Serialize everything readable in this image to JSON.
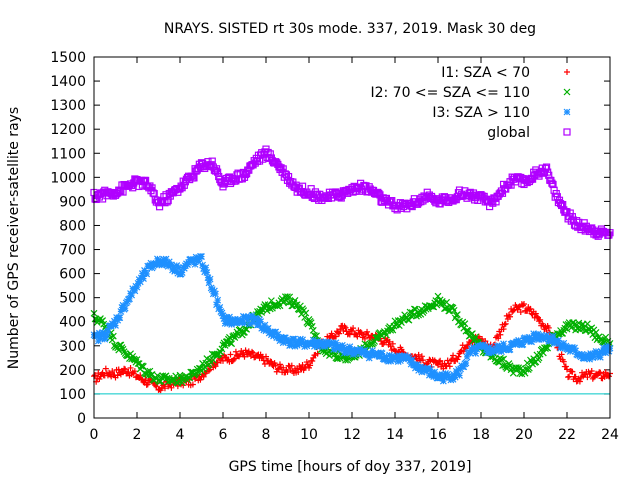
{
  "chart_data": {
    "type": "scatter",
    "title": "NRAYS. SISTED rt 30s mode. 337, 2019. Mask 30 deg",
    "xlabel": "GPS time [hours of doy 337, 2019]",
    "ylabel": "Number of GPS receiver-satellite rays",
    "xlim": [
      0,
      24
    ],
    "ylim": [
      0,
      1500
    ],
    "x_ticks": [
      "0",
      "2",
      "4",
      "6",
      "8",
      "10",
      "12",
      "14",
      "16",
      "18",
      "20",
      "22",
      "24"
    ],
    "y_ticks": [
      "0",
      "100",
      "200",
      "300",
      "400",
      "500",
      "600",
      "700",
      "800",
      "900",
      "1000",
      "1100",
      "1200",
      "1300",
      "1400",
      "1500"
    ],
    "reference_line": {
      "y": 100,
      "color": "#00c8c8"
    },
    "legend_position": "top-right",
    "series": [
      {
        "name": "I1: SZA < 70",
        "color": "#ff0000",
        "marker": "plus",
        "x": [
          0,
          0.5,
          1,
          1.5,
          2,
          2.5,
          3,
          3.5,
          4,
          4.5,
          5,
          5.5,
          6,
          6.5,
          7,
          7.5,
          8,
          8.5,
          9,
          9.5,
          10,
          10.5,
          11,
          11.5,
          12,
          12.5,
          13,
          13.5,
          14,
          14.5,
          15,
          15.5,
          16,
          16.5,
          17,
          17.5,
          18,
          18.5,
          19,
          19.5,
          20,
          20.5,
          21,
          21.5,
          22,
          22.5,
          23,
          23.5,
          24
        ],
        "values": [
          160,
          190,
          185,
          200,
          175,
          150,
          125,
          140,
          150,
          150,
          180,
          225,
          245,
          255,
          270,
          255,
          240,
          210,
          200,
          200,
          225,
          300,
          330,
          370,
          360,
          345,
          340,
          320,
          290,
          265,
          250,
          230,
          220,
          225,
          270,
          330,
          325,
          290,
          380,
          450,
          460,
          430,
          380,
          310,
          185,
          165,
          180,
          175,
          185
        ]
      },
      {
        "name": "I2: 70 <= SZA <= 110",
        "color": "#00b000",
        "marker": "cross",
        "x": [
          0,
          0.5,
          1,
          1.5,
          2,
          2.5,
          3,
          3.5,
          4,
          4.5,
          5,
          5.5,
          6,
          6.5,
          7,
          7.5,
          8,
          8.5,
          9,
          9.5,
          10,
          10.5,
          11,
          11.5,
          12,
          12.5,
          13,
          13.5,
          14,
          14.5,
          15,
          15.5,
          16,
          16.5,
          17,
          17.5,
          18,
          18.5,
          19,
          19.5,
          20,
          20.5,
          21,
          21.5,
          22,
          22.5,
          23,
          23.5,
          24
        ],
        "values": [
          420,
          390,
          310,
          270,
          230,
          190,
          160,
          160,
          160,
          175,
          210,
          250,
          300,
          330,
          370,
          420,
          460,
          480,
          490,
          470,
          400,
          300,
          270,
          260,
          250,
          285,
          320,
          350,
          390,
          415,
          440,
          460,
          490,
          460,
          410,
          350,
          290,
          260,
          230,
          200,
          200,
          240,
          290,
          350,
          380,
          380,
          375,
          330,
          310
        ]
      },
      {
        "name": "I3: SZA > 110",
        "color": "#1e90ff",
        "marker": "star",
        "x": [
          0,
          0.5,
          1,
          1.5,
          2,
          2.5,
          3,
          3.5,
          4,
          4.5,
          5,
          5.5,
          6,
          6.5,
          7,
          7.5,
          8,
          8.5,
          9,
          9.5,
          10,
          10.5,
          11,
          11.5,
          12,
          12.5,
          13,
          13.5,
          14,
          14.5,
          15,
          15.5,
          16,
          16.5,
          17,
          17.5,
          18,
          18.5,
          19,
          19.5,
          20,
          20.5,
          21,
          21.5,
          22,
          22.5,
          23,
          23.5,
          24
        ],
        "values": [
          330,
          345,
          400,
          480,
          550,
          615,
          655,
          640,
          610,
          650,
          655,
          540,
          410,
          400,
          405,
          410,
          370,
          340,
          320,
          310,
          310,
          310,
          300,
          290,
          280,
          270,
          265,
          255,
          250,
          245,
          215,
          195,
          170,
          170,
          190,
          270,
          290,
          280,
          290,
          300,
          320,
          340,
          340,
          320,
          290,
          270,
          250,
          265,
          290
        ]
      },
      {
        "name": "global",
        "color": "#b000ff",
        "marker": "square",
        "x": [
          0,
          0.5,
          1,
          1.5,
          2,
          2.5,
          3,
          3.5,
          4,
          4.5,
          5,
          5.5,
          6,
          6.5,
          7,
          7.5,
          8,
          8.5,
          9,
          9.5,
          10,
          10.5,
          11,
          11.5,
          12,
          12.5,
          13,
          13.5,
          14,
          14.5,
          15,
          15.5,
          16,
          16.5,
          17,
          17.5,
          18,
          18.5,
          19,
          19.5,
          20,
          20.5,
          21,
          21.5,
          22,
          22.5,
          23,
          23.5,
          24
        ],
        "values": [
          920,
          930,
          940,
          960,
          980,
          970,
          890,
          920,
          960,
          1000,
          1050,
          1060,
          970,
          1000,
          1010,
          1070,
          1100,
          1060,
          1000,
          950,
          940,
          920,
          920,
          930,
          950,
          960,
          940,
          900,
          880,
          880,
          900,
          920,
          900,
          910,
          930,
          930,
          910,
          890,
          950,
          990,
          980,
          1010,
          1040,
          920,
          850,
          800,
          790,
          770,
          770
        ]
      }
    ]
  }
}
